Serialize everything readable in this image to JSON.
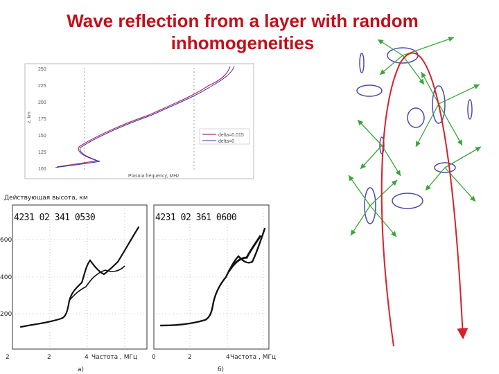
{
  "title": {
    "line1": "Wave reflection from a layer with random",
    "line2": "inhomogeneities"
  },
  "colors": {
    "title": "#c0101a",
    "ray": "#d8202a",
    "scatter": "#3aa53a",
    "blob": "#4a4ab0"
  },
  "profile_chart": {
    "y_ticks": [
      "250",
      "225",
      "200",
      "175",
      "150",
      "125",
      "100"
    ],
    "y_label": "z, km",
    "x_label": "Plasma frequency, MHz",
    "legend": [
      "delta=0.015",
      "delta=0"
    ]
  },
  "ionograms": {
    "y_axis_label": "Действующая высота, км",
    "y_ticks": [
      "600",
      "400",
      "200"
    ],
    "left": {
      "stamp": "4231 02 341 0530",
      "x_ticks": [
        "2",
        "2",
        "4"
      ],
      "x_label": "Частота , МГц",
      "caption": "а)"
    },
    "right": {
      "stamp": "4231 02 361 0600",
      "x_ticks": [
        "0",
        "2",
        "4"
      ],
      "x_label": "Частота , МГц",
      "caption": "б)"
    }
  }
}
